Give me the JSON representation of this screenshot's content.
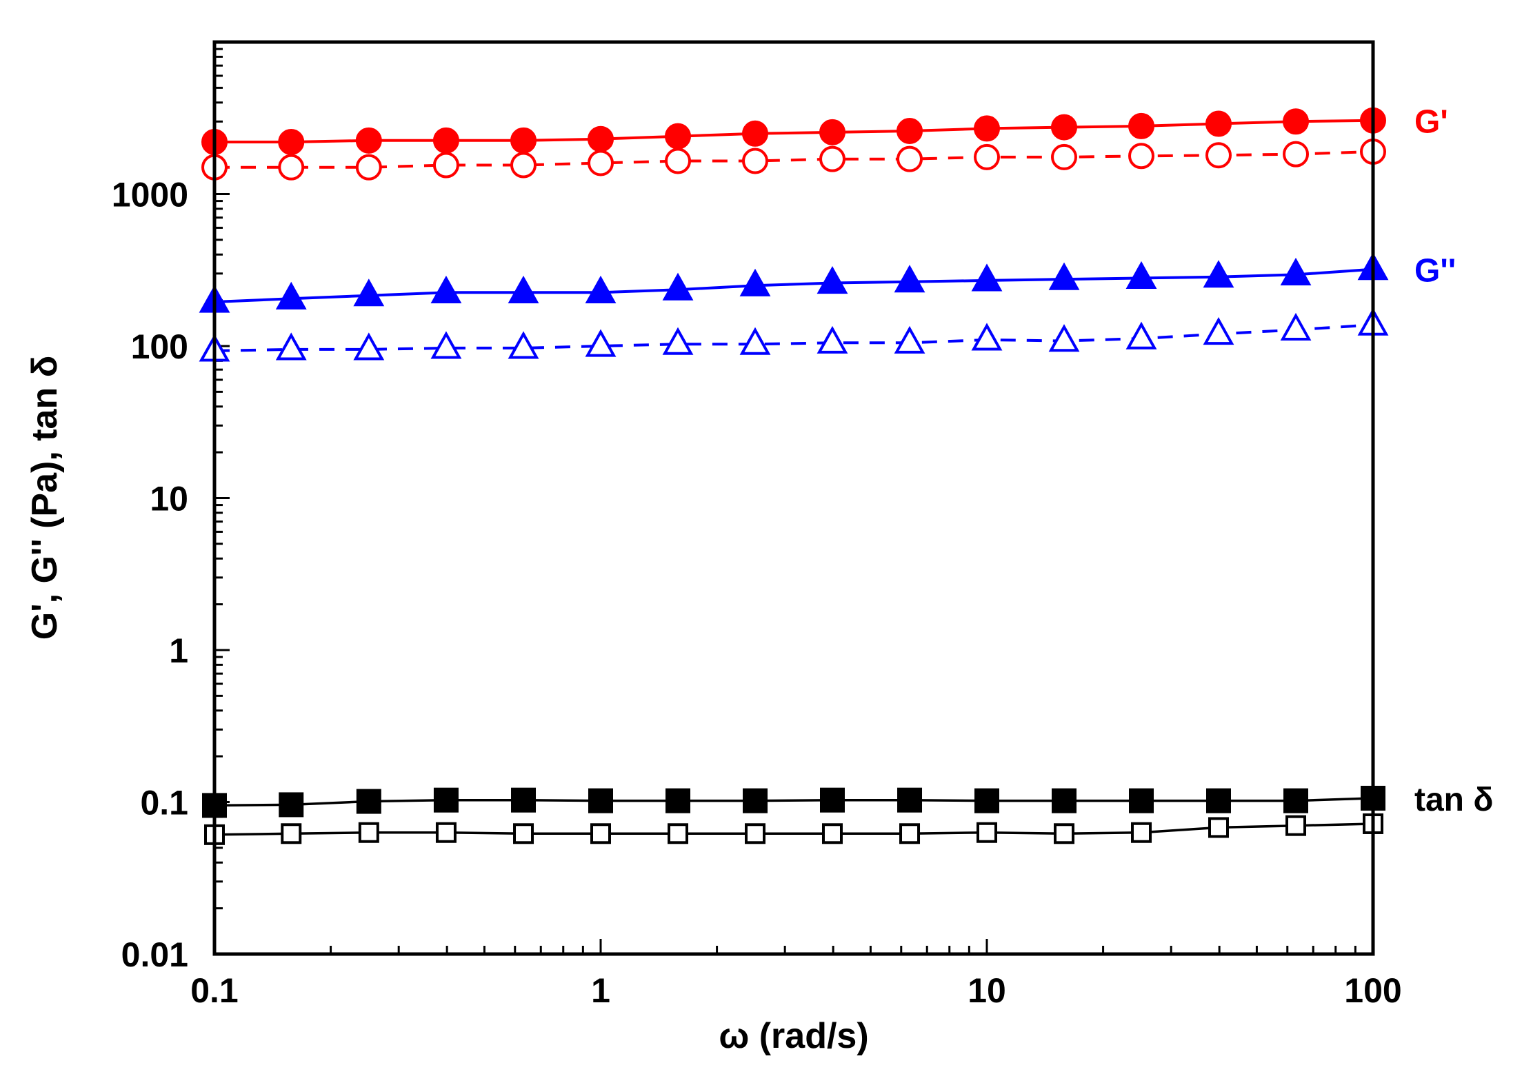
{
  "chart_data": {
    "type": "scatter",
    "title": "",
    "xlabel": "ω (rad/s)",
    "ylabel": "G', G'' (Pa), tan δ",
    "xscale": "log",
    "yscale": "log",
    "xlim": [
      0.1,
      100
    ],
    "ylim": [
      0.01,
      10000
    ],
    "x_tick_labels": [
      "0.1",
      "1",
      "10",
      "100"
    ],
    "y_tick_labels": [
      "0.01",
      "0.1",
      "1",
      "10",
      "100",
      "1000"
    ],
    "grid": false,
    "legend": "none",
    "x": [
      0.1,
      0.158,
      0.251,
      0.398,
      0.631,
      1.0,
      1.585,
      2.512,
      3.981,
      6.31,
      10.0,
      15.85,
      25.12,
      39.81,
      63.1,
      100.0
    ],
    "series": [
      {
        "key": "gp_filled",
        "color": "#ff0000",
        "marker": "circle",
        "filled": true,
        "line": "solid",
        "values": [
          2200,
          2200,
          2250,
          2250,
          2250,
          2300,
          2400,
          2500,
          2550,
          2600,
          2700,
          2750,
          2800,
          2900,
          3000,
          3050
        ]
      },
      {
        "key": "gp_open",
        "color": "#ff0000",
        "marker": "circle",
        "filled": false,
        "line": "dashed",
        "values": [
          1500,
          1500,
          1500,
          1550,
          1550,
          1600,
          1650,
          1650,
          1700,
          1700,
          1750,
          1750,
          1780,
          1800,
          1830,
          1900
        ]
      },
      {
        "key": "gpp_filled",
        "color": "#0000ff",
        "marker": "triangle",
        "filled": true,
        "line": "solid",
        "values": [
          195,
          205,
          215,
          225,
          225,
          225,
          235,
          250,
          260,
          265,
          270,
          275,
          280,
          285,
          295,
          320
        ]
      },
      {
        "key": "gpp_open",
        "color": "#0000ff",
        "marker": "triangle",
        "filled": false,
        "line": "dashed",
        "values": [
          93,
          95,
          95,
          97,
          97,
          100,
          103,
          103,
          105,
          105,
          110,
          108,
          112,
          120,
          128,
          138
        ]
      },
      {
        "key": "tan_filled",
        "color": "#000000",
        "marker": "square",
        "filled": true,
        "line": "solid",
        "values": [
          0.095,
          0.096,
          0.101,
          0.103,
          0.103,
          0.102,
          0.102,
          0.102,
          0.103,
          0.103,
          0.102,
          0.102,
          0.102,
          0.102,
          0.102,
          0.106
        ]
      },
      {
        "key": "tan_open",
        "color": "#000000",
        "marker": "square",
        "filled": false,
        "line": "solid",
        "values": [
          0.061,
          0.062,
          0.063,
          0.063,
          0.062,
          0.062,
          0.062,
          0.062,
          0.062,
          0.062,
          0.063,
          0.062,
          0.063,
          0.068,
          0.07,
          0.072
        ]
      }
    ],
    "annotations": [
      {
        "text": "G'",
        "color": "#ff0000",
        "near_series": "gp_filled"
      },
      {
        "text": "G''",
        "color": "#0000ff",
        "near_series": "gpp_filled"
      },
      {
        "text": "tan δ",
        "color": "#000000",
        "near_series": "tan_filled"
      }
    ]
  }
}
